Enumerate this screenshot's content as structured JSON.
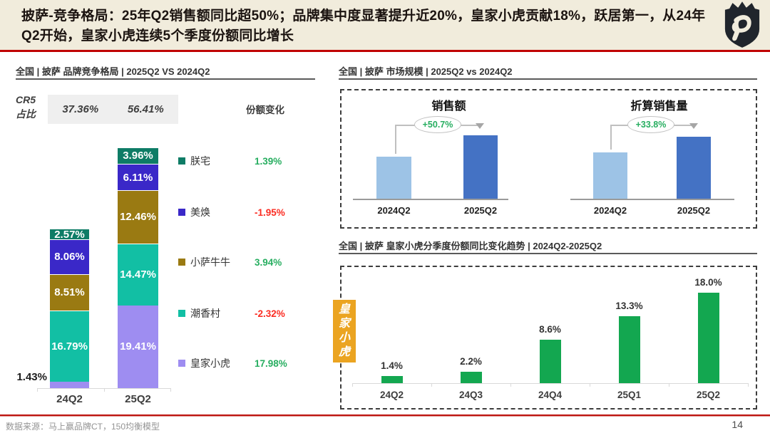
{
  "header": {
    "title": "披萨-竞争格局：25年Q2销售额同比超50%；品牌集中度显著提升近20%，皇家小虎贡献18%，跃居第一，从24年Q2开始，皇家小虎连续5个季度份额同比增长",
    "logo_icon": "crown-shield-crest"
  },
  "left_panel": {
    "header": "全国 | 披萨 品牌竞争格局 | 2025Q2 VS 2024Q2",
    "cr5_label_line1": "CR5",
    "cr5_label_line2": "占比",
    "cr5_values": [
      "37.36%",
      "56.41%"
    ],
    "share_change_header": "份额变化"
  },
  "market_panel": {
    "header": "全国 | 披萨 市场规模 | 2025Q2 vs 2024Q2"
  },
  "trend_panel": {
    "header": "全国 | 披萨  皇家小虎分季度份额同比变化趋势 | 2024Q2-2025Q2",
    "side_label": "皇家小虎"
  },
  "footer": {
    "source": "数据来源：马上赢品牌CT，150均衡模型",
    "page_number": "14"
  },
  "colors": {
    "positive": "#27AE60",
    "negative": "#FB2C22",
    "accent_red": "#C00000",
    "banner_bg": "#F1ECDC"
  },
  "chart_data": [
    {
      "id": "brand_share_stacked",
      "type": "bar",
      "subtype": "stacked",
      "categories": [
        "24Q2",
        "25Q2"
      ],
      "totals": {
        "24Q2": "37.36%",
        "25Q2": "56.41%"
      },
      "unit": "%",
      "series": [
        {
          "name": "皇家小虎",
          "color": "#9E8DF1",
          "values": [
            1.43,
            19.41
          ],
          "labels": [
            "1.43%",
            "19.41%"
          ],
          "yoy_change": "17.98%"
        },
        {
          "name": "潮香村",
          "color": "#12BFA4",
          "values": [
            16.79,
            14.47
          ],
          "labels": [
            "16.79%",
            "14.47%"
          ],
          "yoy_change": "-2.32%"
        },
        {
          "name": "小萨牛牛",
          "color": "#9A7A12",
          "values": [
            8.51,
            12.46
          ],
          "labels": [
            "8.51%",
            "12.46%"
          ],
          "yoy_change": "3.94%"
        },
        {
          "name": "美焕",
          "color": "#3A28C8",
          "values": [
            8.06,
            6.11
          ],
          "labels": [
            "8.06%",
            "6.11%"
          ],
          "yoy_change": "-1.95%"
        },
        {
          "name": "朕宅",
          "color": "#0E7C66",
          "values": [
            2.57,
            3.96
          ],
          "labels": [
            "2.57%",
            "3.96%"
          ],
          "yoy_change": "1.39%"
        }
      ],
      "legend_order_top_to_bottom": [
        "朕宅",
        "美焕",
        "小萨牛牛",
        "潮香村",
        "皇家小虎"
      ]
    },
    {
      "id": "sales_value",
      "type": "bar",
      "title": "销售额",
      "categories": [
        "2024Q2",
        "2025Q2"
      ],
      "relative_values": [
        100,
        150.7
      ],
      "growth_label": "+50.7%",
      "colors": [
        "#9DC3E6",
        "#4472C4"
      ]
    },
    {
      "id": "sales_volume",
      "type": "bar",
      "title": "折算销售量",
      "categories": [
        "2024Q2",
        "2025Q2"
      ],
      "relative_values": [
        100,
        133.8
      ],
      "growth_label": "+33.8%",
      "colors": [
        "#9DC3E6",
        "#4472C4"
      ]
    },
    {
      "id": "royal_tiger_trend",
      "type": "bar",
      "categories": [
        "24Q2",
        "24Q3",
        "24Q4",
        "25Q1",
        "25Q2"
      ],
      "values": [
        1.4,
        2.2,
        8.6,
        13.3,
        18.0
      ],
      "data_labels": [
        "1.4%",
        "2.2%",
        "8.6%",
        "13.3%",
        "18.0%"
      ],
      "color": "#13A750",
      "unit": "%"
    }
  ]
}
